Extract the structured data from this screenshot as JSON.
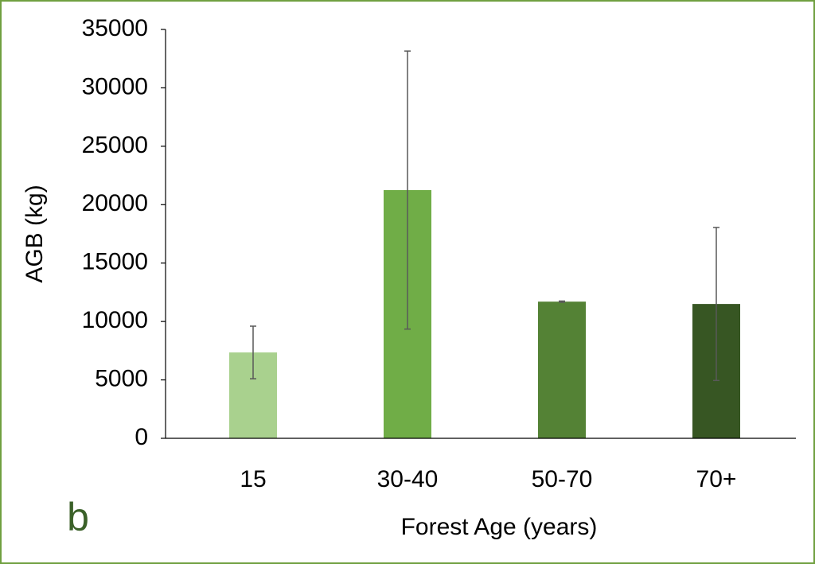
{
  "chart_data": {
    "type": "bar",
    "panel_label": "b",
    "x_label": "Forest Age (years)",
    "y_label": "AGB (kg)",
    "categories": [
      "15",
      "30-40",
      "50-70",
      "70+"
    ],
    "values": [
      7350,
      21250,
      11700,
      11500
    ],
    "errors": [
      2250,
      11900,
      50,
      6550
    ],
    "colors": [
      "#a9d18e",
      "#70ad47",
      "#548235",
      "#375623"
    ],
    "ylim": [
      0,
      35000
    ],
    "yticks": [
      0,
      5000,
      10000,
      15000,
      20000,
      25000,
      30000,
      35000
    ]
  }
}
